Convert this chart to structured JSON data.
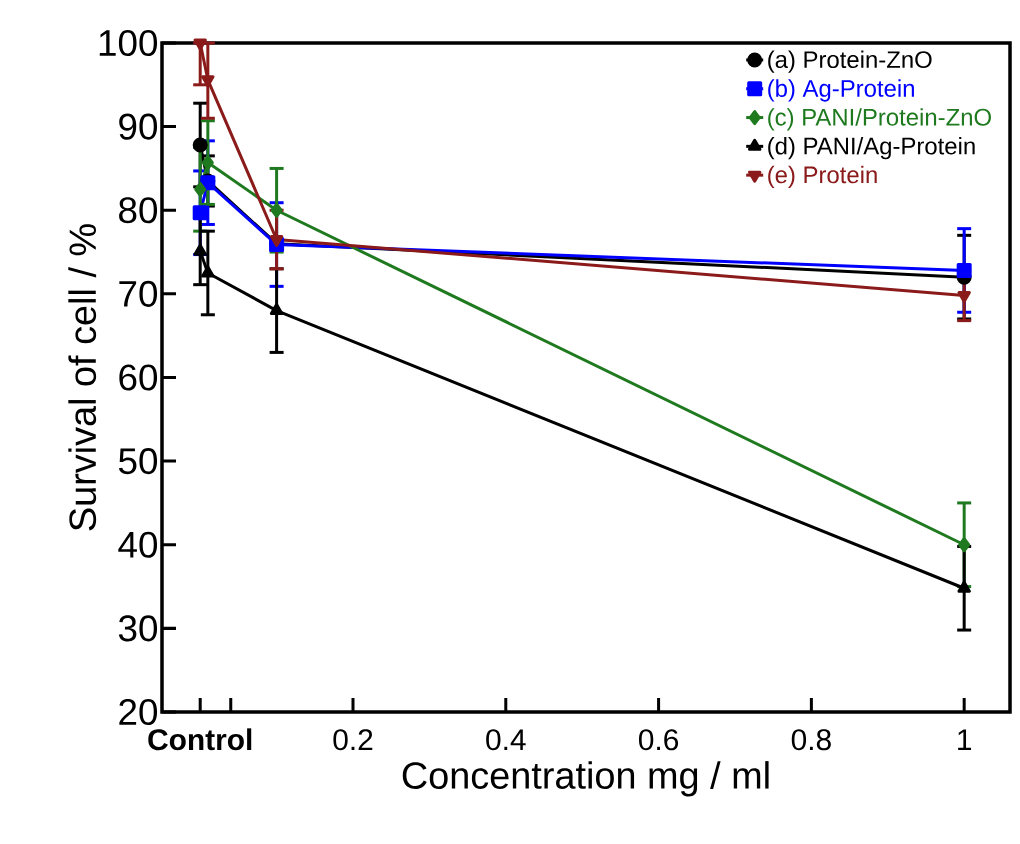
{
  "chart_data": {
    "type": "line",
    "xlabel": "Concentration mg / ml",
    "ylabel": "Survival of cell / %",
    "x": [
      0,
      0.01,
      0.1,
      1
    ],
    "xlim": [
      -0.05,
      1.06
    ],
    "ylim": [
      20,
      100
    ],
    "xticks": [
      {
        "value": 0,
        "label": "Control"
      },
      {
        "value": 0.04,
        "label": null
      },
      0.2,
      0.4,
      0.6,
      0.8,
      1
    ],
    "yticks": [
      20,
      30,
      40,
      50,
      60,
      70,
      80,
      90,
      100
    ],
    "legend": "top right",
    "grid": false,
    "line_style": "solid",
    "series": [
      {
        "name": "(a) Protein-ZnO",
        "color": "#000000",
        "marker": "circle",
        "values": [
          87.8,
          83.5,
          76,
          72
        ],
        "errors": [
          5,
          3,
          null,
          5
        ]
      },
      {
        "name": "(b) Ag-Protein",
        "color": "#0000ff",
        "marker": "square",
        "values": [
          79.7,
          83.3,
          75.9,
          72.8
        ],
        "errors": [
          5,
          5,
          5,
          5
        ]
      },
      {
        "name": "(c) PANI/Protein-ZnO",
        "color": "#1f7a1f",
        "marker": "diamond",
        "values": [
          82.5,
          85.7,
          80,
          40
        ],
        "errors": [
          5,
          5,
          5,
          5
        ]
      },
      {
        "name": "(d) PANI/Ag-Protein",
        "color": "#000000",
        "marker": "triangle",
        "values": [
          75.1,
          72.5,
          68,
          34.8
        ],
        "errors": [
          4,
          5,
          5,
          5
        ]
      },
      {
        "name": "(e) Protein",
        "color": "#8b1a1a",
        "marker": "triangle-down",
        "values": [
          100,
          95.6,
          76.5,
          69.8
        ],
        "errors": [
          [
            95,
            100
          ],
          [
            91,
            100
          ],
          3.5,
          3
        ]
      }
    ]
  }
}
